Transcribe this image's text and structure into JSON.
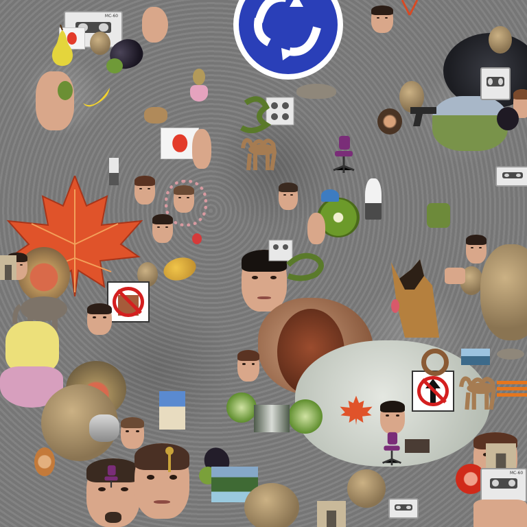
{
  "scene": {
    "description_tag": "collage",
    "objects": {
      "cassette_top_label": "MC-60",
      "cassette_right_label": "MC-60"
    }
  },
  "colors": {
    "background": "#7c7c7c",
    "roundabout_blue": "#2a3fb8",
    "maple_leaf": "#e0532a",
    "prohibit_red": "#d41f1f"
  }
}
